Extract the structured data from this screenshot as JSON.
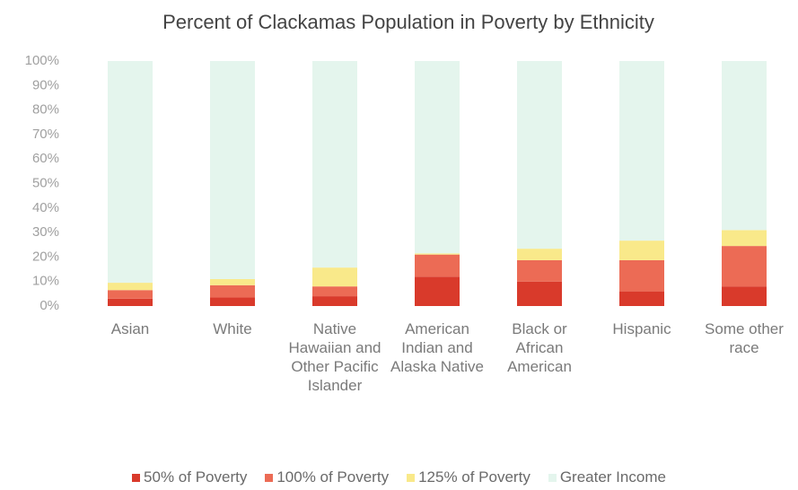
{
  "chart_data": {
    "type": "stacked_bar",
    "title": "Percent of Clackamas Population in Poverty by Ethnicity",
    "categories": [
      "Asian",
      "White",
      "Native Hawaiian and Other Pacific Islander",
      "American Indian and Alaska Native",
      "Black or African American",
      "Hispanic",
      "Some other race"
    ],
    "series": [
      {
        "name": "50% of Poverty",
        "color": "#d93a2b",
        "values": [
          3,
          3.5,
          4,
          12,
          10,
          6,
          8
        ]
      },
      {
        "name": "100% of Poverty",
        "color": "#ec6b55",
        "values": [
          3.5,
          5,
          4,
          9,
          8.7,
          12.7,
          16.5
        ]
      },
      {
        "name": "125% of Poverty",
        "color": "#f9e98a",
        "values": [
          3,
          2.5,
          7.7,
          0.5,
          4.7,
          8,
          6.5
        ]
      },
      {
        "name": "Greater Income",
        "color": "#e4f5ed",
        "values": [
          90.5,
          89,
          84.3,
          78.5,
          76.6,
          73.3,
          69
        ]
      }
    ],
    "ylim": [
      0,
      100
    ],
    "yticks": [
      {
        "value": 0,
        "label": "0%"
      },
      {
        "value": 10,
        "label": "10%"
      },
      {
        "value": 20,
        "label": "20%"
      },
      {
        "value": 30,
        "label": "30%"
      },
      {
        "value": 40,
        "label": "40%"
      },
      {
        "value": 50,
        "label": "50%"
      },
      {
        "value": 60,
        "label": "60%"
      },
      {
        "value": 70,
        "label": "70%"
      },
      {
        "value": 80,
        "label": "80%"
      },
      {
        "value": 90,
        "label": "90%"
      },
      {
        "value": 100,
        "label": "100%"
      }
    ],
    "legend": "bottom"
  }
}
